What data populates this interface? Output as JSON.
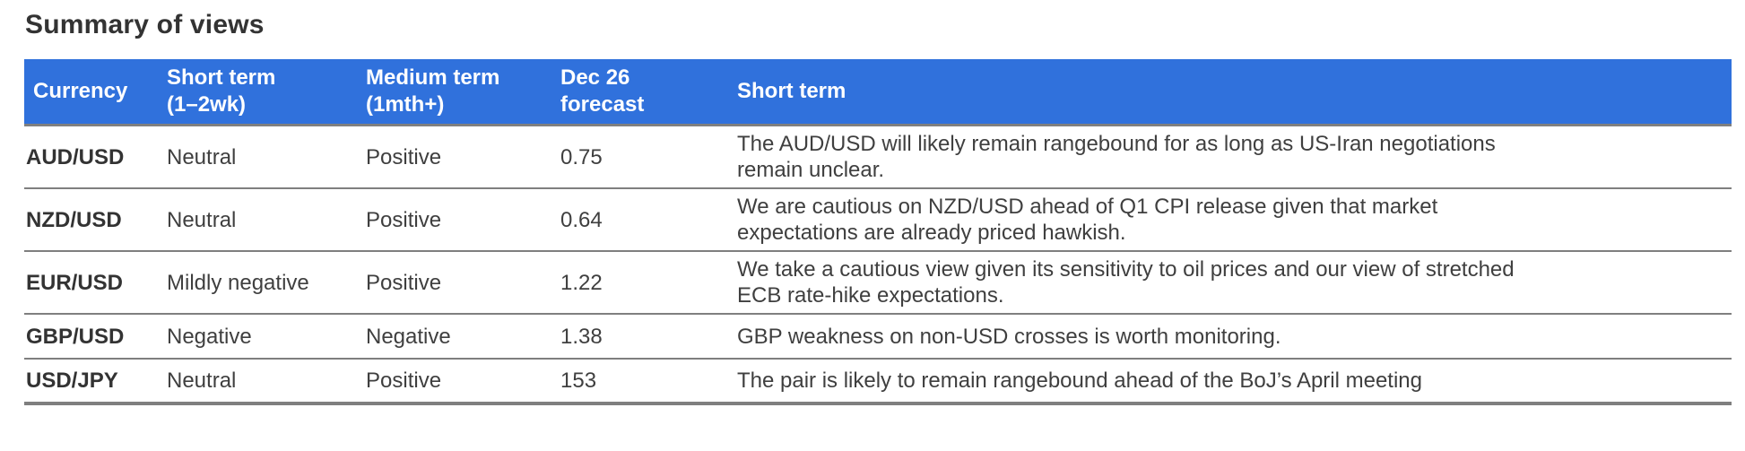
{
  "page": {
    "title": "Summary of views"
  },
  "colors": {
    "header_bg": "#3071dc",
    "header_text": "#ffffff",
    "border": "#7f7f7f",
    "title_text": "#333333",
    "body_text": "#3f3f3f"
  },
  "table": {
    "columns": [
      "Currency",
      "Short term\n(1–2wk)",
      "Medium term\n(1mth+)",
      "Dec 26\nforecast",
      "Short term"
    ],
    "rows": [
      {
        "currency": "AUD/USD",
        "short_term": "Neutral",
        "medium_term": "Positive",
        "forecast": "0.75",
        "view": "The AUD/USD will likely remain rangebound for as long as US-Iran negotiations\nremain unclear."
      },
      {
        "currency": "NZD/USD",
        "short_term": "Neutral",
        "medium_term": "Positive",
        "forecast": "0.64",
        "view": "We are cautious on NZD/USD ahead of Q1 CPI release given that market\nexpectations are already priced hawkish."
      },
      {
        "currency": "EUR/USD",
        "short_term": "Mildly negative",
        "medium_term": "Positive",
        "forecast": "1.22",
        "view": "We take a cautious view given its sensitivity to oil prices and our view of stretched\nECB rate-hike expectations."
      },
      {
        "currency": "GBP/USD",
        "short_term": "Negative",
        "medium_term": "Negative",
        "forecast": "1.38",
        "view": "GBP weakness on non-USD crosses is worth monitoring."
      },
      {
        "currency": "USD/JPY",
        "short_term": "Neutral",
        "medium_term": "Positive",
        "forecast": "153",
        "view": "The pair is likely to remain rangebound ahead of the BoJ’s April meeting"
      }
    ]
  }
}
